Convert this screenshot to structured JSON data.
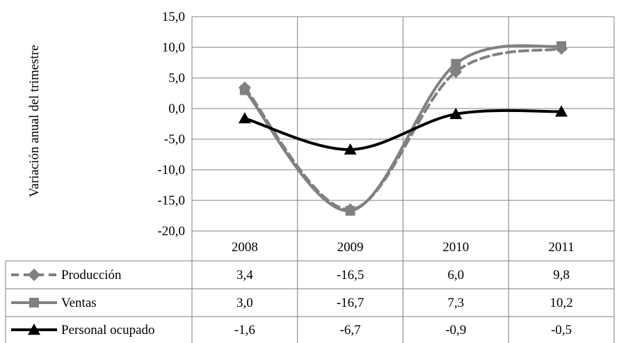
{
  "chart_data": {
    "type": "line",
    "ylabel": "Variación anual del trimestre",
    "categories": [
      "2008",
      "2009",
      "2010",
      "2011"
    ],
    "ylim": [
      -20,
      15
    ],
    "yticks": [
      "15,0",
      "10,0",
      "5,0",
      "0,0",
      "-5,0",
      "-10,0",
      "-15,0",
      "-20,0"
    ],
    "grid": true,
    "legend": "data-table",
    "series": [
      {
        "name": "Producción",
        "values": [
          3.4,
          -16.5,
          6.0,
          9.8
        ],
        "labels": [
          "3,4",
          "-16,5",
          "6,0",
          "9,8"
        ],
        "color": "#808080",
        "dash": true,
        "marker": "diamond"
      },
      {
        "name": "Ventas",
        "values": [
          3.0,
          -16.7,
          7.3,
          10.2
        ],
        "labels": [
          "3,0",
          "-16,7",
          "7,3",
          "10,2"
        ],
        "color": "#808080",
        "dash": false,
        "marker": "square"
      },
      {
        "name": "Personal ocupado",
        "values": [
          -1.6,
          -6.7,
          -0.9,
          -0.5
        ],
        "labels": [
          "-1,6",
          "-6,7",
          "-0,9",
          "-0,5"
        ],
        "color": "#000000",
        "dash": false,
        "marker": "triangle"
      }
    ]
  }
}
